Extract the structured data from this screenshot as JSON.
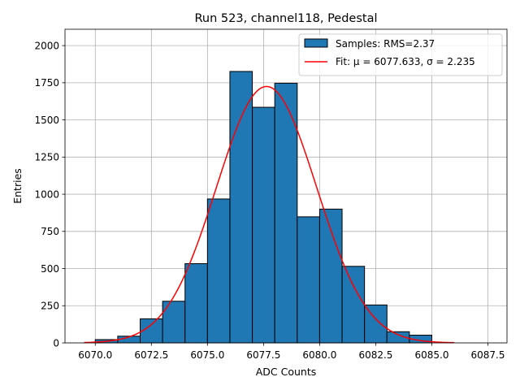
{
  "chart_data": {
    "type": "bar",
    "title": "Run 523, channel118, Pedestal",
    "xlabel": "ADC Counts",
    "ylabel": "Entries",
    "xlim": [
      6068.65,
      6088.35
    ],
    "ylim": [
      0,
      2110
    ],
    "xticks": [
      6070.0,
      6072.5,
      6075.0,
      6077.5,
      6080.0,
      6082.5,
      6085.0,
      6087.5
    ],
    "xtick_labels": [
      "6070.0",
      "6072.5",
      "6075.0",
      "6077.5",
      "6080.0",
      "6082.5",
      "6085.0",
      "6087.5"
    ],
    "yticks": [
      0,
      250,
      500,
      750,
      1000,
      1250,
      1500,
      1750,
      2000
    ],
    "ytick_labels": [
      "0",
      "250",
      "500",
      "750",
      "1000",
      "1250",
      "1500",
      "1750",
      "2000"
    ],
    "grid": true,
    "legend_position": "upper right",
    "bins": [
      {
        "x0": 6070,
        "x1": 6071,
        "count": 22
      },
      {
        "x0": 6071,
        "x1": 6072,
        "count": 45
      },
      {
        "x0": 6072,
        "x1": 6073,
        "count": 162
      },
      {
        "x0": 6073,
        "x1": 6074,
        "count": 280
      },
      {
        "x0": 6074,
        "x1": 6075,
        "count": 533
      },
      {
        "x0": 6075,
        "x1": 6076,
        "count": 968
      },
      {
        "x0": 6076,
        "x1": 6077,
        "count": 1826
      },
      {
        "x0": 6077,
        "x1": 6078,
        "count": 1585
      },
      {
        "x0": 6078,
        "x1": 6079,
        "count": 1747
      },
      {
        "x0": 6079,
        "x1": 6080,
        "count": 848
      },
      {
        "x0": 6080,
        "x1": 6081,
        "count": 900
      },
      {
        "x0": 6081,
        "x1": 6082,
        "count": 515
      },
      {
        "x0": 6082,
        "x1": 6083,
        "count": 255
      },
      {
        "x0": 6083,
        "x1": 6084,
        "count": 75
      },
      {
        "x0": 6084,
        "x1": 6085,
        "count": 52
      }
    ],
    "fit": {
      "mu": 6077.633,
      "sigma": 2.235,
      "amplitude": 1725,
      "x_range": [
        6069.5,
        6086.0
      ]
    },
    "series": [
      {
        "name": "Samples: RMS=2.37",
        "kind": "histogram",
        "color": "#1f77b4"
      },
      {
        "name": "Fit: μ = 6077.633, σ = 2.235",
        "kind": "line",
        "color": "#ff0000"
      }
    ]
  }
}
